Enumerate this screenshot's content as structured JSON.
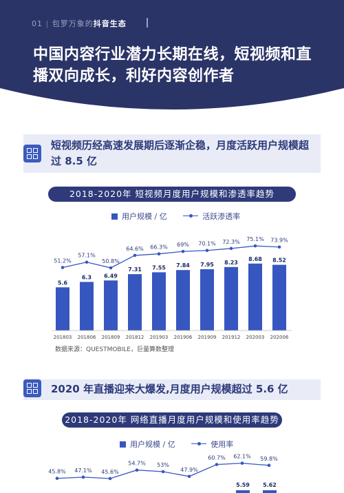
{
  "header": {
    "tag_num": "01",
    "tag_sub": "包罗万象的",
    "tag_bold": "抖音生态",
    "title": "中国内容行业潜力长期在线，短视频和直播双向成长，利好内容创作者"
  },
  "colors": {
    "navy": "#2b3467",
    "bar": "#3657c0",
    "line": "#3657c0",
    "accent": "#3b5bbf"
  },
  "section1": {
    "title": "短视频历经高速发展期后逐渐企稳，月度活跃用户规模超过 8.5 亿",
    "chart_title": "2018-2020年   短视频月度用户规模和渗透率趋势",
    "legend_bar": "用户规模 / 亿",
    "legend_line": "活跃渗透率",
    "source": "数据来源：QUESTMOBILE，巨量算数整理"
  },
  "section2": {
    "title": "2020 年直播迎来大爆发,月度用户规模超过 5.6 亿",
    "chart_title": "2018-2020年   网络直播月度用户规模和使用率趋势",
    "legend_bar": "用户规模 / 亿",
    "legend_line": "使用率"
  },
  "chart_data": [
    {
      "type": "bar",
      "categories": [
        "201803",
        "201806",
        "201809",
        "201812",
        "201903",
        "201906",
        "201909",
        "201912",
        "202003",
        "202006"
      ],
      "series": [
        {
          "name": "用户规模 / 亿",
          "type": "bar",
          "values": [
            5.6,
            6.3,
            6.49,
            7.31,
            7.55,
            7.84,
            7.95,
            8.23,
            8.68,
            8.52
          ]
        },
        {
          "name": "活跃渗透率",
          "type": "line",
          "values": [
            51.2,
            57.1,
            50.8,
            64.6,
            66.3,
            69,
            70.1,
            72.3,
            75.1,
            73.9
          ],
          "labels": [
            "51.2%",
            "57.1%",
            "50.8%",
            "64.6%",
            "66.3%",
            "69%",
            "70.1%",
            "72.3%",
            "75.1%",
            "73.9%"
          ]
        }
      ],
      "bar_labels": [
        "5.6",
        "6.3",
        "6.49",
        "7.31",
        "7.55",
        "7.84",
        "7.95",
        "8.23",
        "8.68",
        "8.52"
      ]
    },
    {
      "type": "line",
      "series": [
        {
          "name": "使用率",
          "type": "line",
          "values": [
            45.8,
            47.1,
            45.6,
            54.7,
            53,
            47.9,
            60.7,
            62.1,
            59.8
          ],
          "labels": [
            "45.8%",
            "47.1%",
            "45.6%",
            "54.7%",
            "53%",
            "47.9%",
            "60.7%",
            "62.1%",
            "59.8%"
          ]
        },
        {
          "name": "用户规模 / 亿",
          "type": "bar",
          "values": [
            5.59,
            5.62
          ],
          "labels": [
            "5.59",
            "5.62"
          ]
        }
      ]
    }
  ]
}
